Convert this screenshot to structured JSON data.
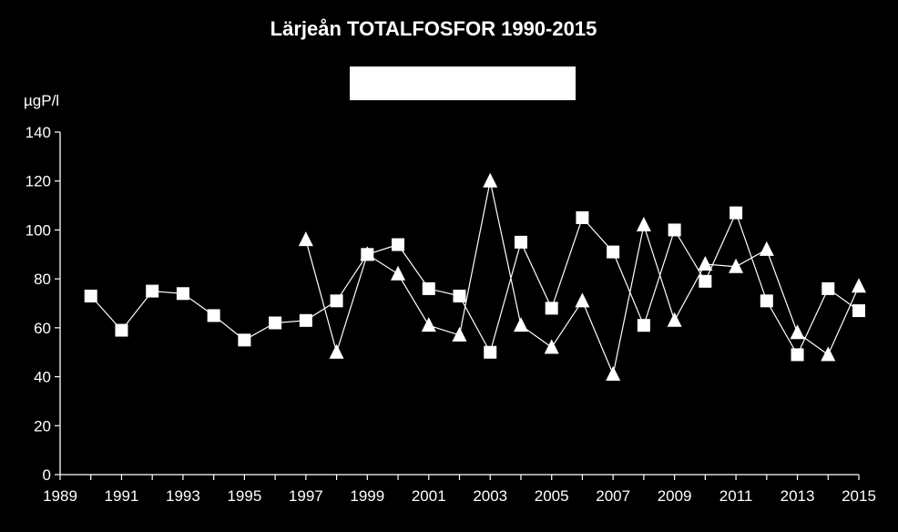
{
  "chart_data": {
    "type": "line",
    "title": "Lärjeån TOTALFOSFOR 1990-2015",
    "ylabel": "µgP/l",
    "xlabel": "",
    "xlim": [
      1989,
      2015
    ],
    "ylim": [
      0,
      140
    ],
    "x_ticks": [
      "1989",
      "1991",
      "1993",
      "1995",
      "1997",
      "1999",
      "2001",
      "2003",
      "2005",
      "2007",
      "2009",
      "2011",
      "2013",
      "2015"
    ],
    "y_ticks": [
      "0",
      "20",
      "40",
      "60",
      "80",
      "100",
      "120",
      "140"
    ],
    "grid": false,
    "legend": "hidden",
    "series": [
      {
        "marker": "square",
        "color": "#ffffff",
        "x": [
          1990,
          1991,
          1992,
          1993,
          1994,
          1995,
          1996,
          1997,
          1998,
          1999,
          2000,
          2001,
          2002,
          2003,
          2004,
          2005,
          2006,
          2007,
          2008,
          2009,
          2010,
          2011,
          2012,
          2013,
          2014,
          2015
        ],
        "values": [
          73,
          59,
          75,
          74,
          65,
          55,
          62,
          63,
          71,
          90,
          94,
          76,
          73,
          50,
          95,
          68,
          105,
          91,
          61,
          100,
          79,
          107,
          71,
          49,
          76,
          67
        ]
      },
      {
        "marker": "triangle",
        "color": "#ffffff",
        "x": [
          1997,
          1998,
          1999,
          2000,
          2001,
          2002,
          2003,
          2004,
          2005,
          2006,
          2007,
          2008,
          2009,
          2010,
          2011,
          2012,
          2013,
          2014,
          2015
        ],
        "values": [
          96,
          50,
          90,
          82,
          61,
          57,
          120,
          61,
          52,
          71,
          41,
          102,
          63,
          86,
          85,
          92,
          58,
          49,
          77
        ]
      }
    ]
  }
}
